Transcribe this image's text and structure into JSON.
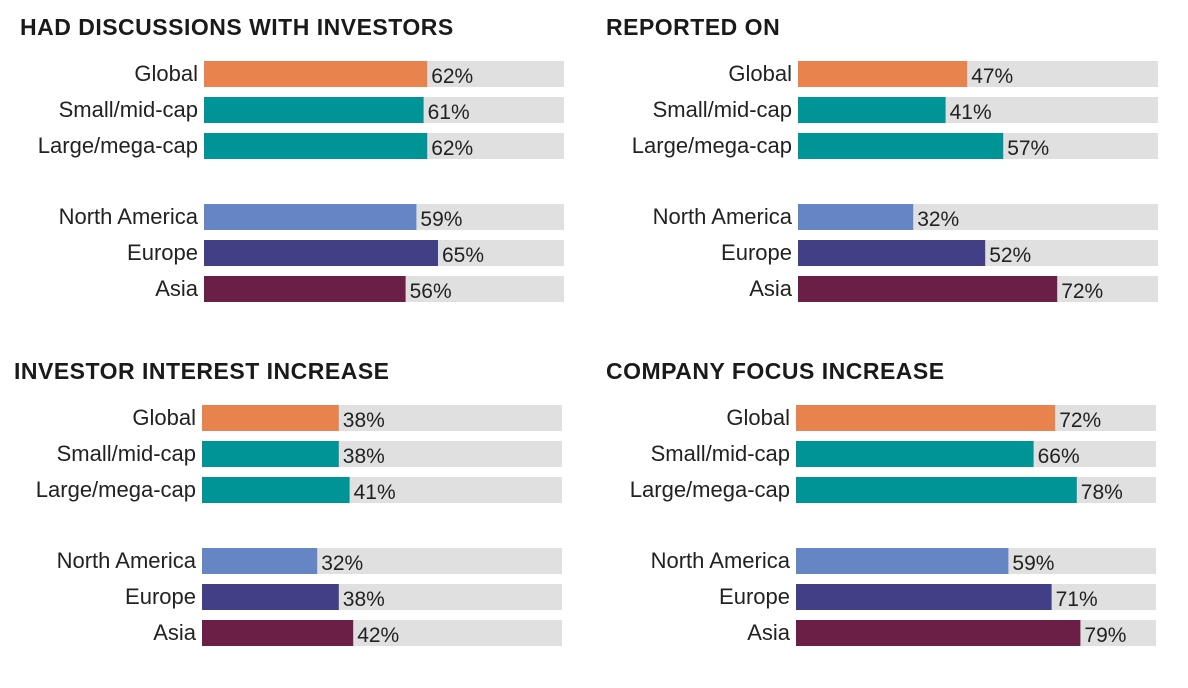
{
  "chart_data": [
    {
      "type": "bar",
      "title": "HAD DISCUSSIONS WITH INVESTORS",
      "categories": [
        "Global",
        "Small/mid-cap",
        "Large/mega-cap",
        "North America",
        "Europe",
        "Asia"
      ],
      "values": [
        62,
        61,
        62,
        59,
        65,
        56
      ],
      "value_labels": [
        "62%",
        "61%",
        "62%",
        "59%",
        "65%",
        "56%"
      ],
      "xlim": [
        0,
        100
      ],
      "grid": false
    },
    {
      "type": "bar",
      "title": "REPORTED ON",
      "categories": [
        "Global",
        "Small/mid-cap",
        "Large/mega-cap",
        "North America",
        "Europe",
        "Asia"
      ],
      "values": [
        47,
        41,
        57,
        32,
        52,
        72
      ],
      "value_labels": [
        "47%",
        "41%",
        "57%",
        "32%",
        "52%",
        "72%"
      ],
      "xlim": [
        0,
        100
      ],
      "grid": false
    },
    {
      "type": "bar",
      "title": "INVESTOR INTEREST INCREASE",
      "categories": [
        "Global",
        "Small/mid-cap",
        "Large/mega-cap",
        "North America",
        "Europe",
        "Asia"
      ],
      "values": [
        38,
        38,
        41,
        32,
        38,
        42
      ],
      "value_labels": [
        "38%",
        "38%",
        "41%",
        "32%",
        "38%",
        "42%"
      ],
      "xlim": [
        0,
        100
      ],
      "grid": false
    },
    {
      "type": "bar",
      "title": "COMPANY FOCUS INCREASE",
      "categories": [
        "Global",
        "Small/mid-cap",
        "Large/mega-cap",
        "North America",
        "Europe",
        "Asia"
      ],
      "values": [
        72,
        66,
        78,
        59,
        71,
        79
      ],
      "value_labels": [
        "72%",
        "66%",
        "78%",
        "59%",
        "71%",
        "79%"
      ],
      "xlim": [
        0,
        100
      ],
      "grid": false
    }
  ],
  "colors": {
    "global": "#e8834d",
    "small_mid_cap": "#009497",
    "large_mega_cap": "#009497",
    "north_america": "#6585c5",
    "europe": "#413f85",
    "asia": "#6b1f47",
    "track": "#e0e0e0"
  }
}
